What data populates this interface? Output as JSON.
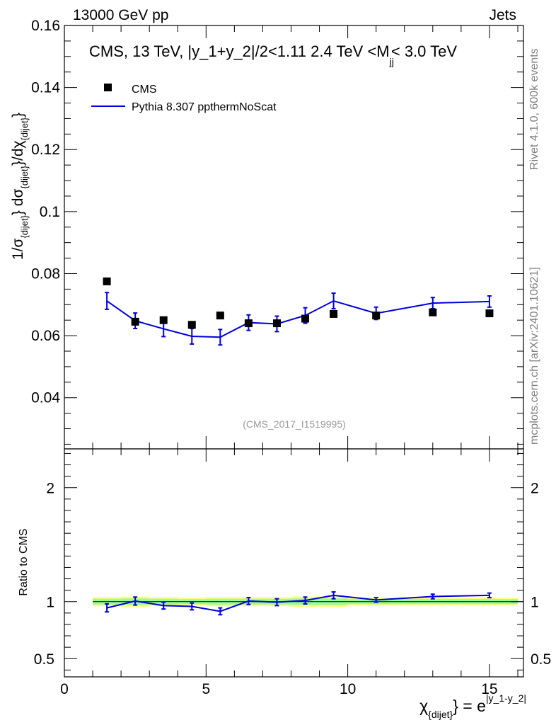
{
  "header": {
    "left": "13000 GeV pp",
    "right": "Jets"
  },
  "side_labels": {
    "rivet": "Rivet 4.1.0,  600k events",
    "mcplots": "mcplots.cern.ch [arXiv:2401.10621]"
  },
  "colors": {
    "data": "#000000",
    "mc": "#0000dd",
    "band_outer": "#ffff80",
    "band_inner": "#98fb98"
  },
  "chart_data": [
    {
      "type": "scatter",
      "title": "CMS, 13 TeV, |y_1+y_2|/2<1.11 2.4 TeV <M",
      "title_sub": "jj",
      "title_end": "< 3.0 TeV",
      "watermark": "(CMS_2017_I1519995)",
      "ylabel": {
        "parts": [
          "1/σ",
          "{dijet}",
          "} dσ",
          "{dijet}",
          "}/dχ",
          "{dijet}",
          "}"
        ]
      },
      "xlim": [
        0,
        16.2
      ],
      "ylim": [
        0.0235,
        0.16
      ],
      "yticks": [
        0.04,
        0.06,
        0.08,
        0.1,
        0.12,
        0.14,
        0.16
      ],
      "ytick_labels": [
        "0.04",
        "0.06",
        "0.08",
        "0.1",
        "0.12",
        "0.14",
        "0.16"
      ],
      "legend": [
        {
          "label": "CMS",
          "kind": "marker"
        },
        {
          "label": "Pythia 8.307 ppthermNoScat",
          "kind": "line"
        }
      ],
      "series": [
        {
          "name": "CMS",
          "x": [
            1.5,
            2.5,
            3.5,
            4.5,
            5.5,
            6.5,
            7.5,
            8.5,
            9.5,
            11.0,
            13.0,
            15.0
          ],
          "y": [
            0.0775,
            0.0645,
            0.065,
            0.0635,
            0.0665,
            0.064,
            0.064,
            0.0655,
            0.067,
            0.0665,
            0.0675,
            0.0672
          ]
        },
        {
          "name": "Pythia 8.307 ppthermNoScat",
          "x": [
            1.5,
            2.5,
            3.5,
            4.5,
            5.5,
            6.5,
            7.5,
            8.5,
            9.5,
            11.0,
            13.0,
            15.0
          ],
          "y": [
            0.0712,
            0.0648,
            0.0622,
            0.0598,
            0.0595,
            0.0642,
            0.0638,
            0.0665,
            0.0712,
            0.0672,
            0.0705,
            0.071
          ],
          "yerr": [
            0.0027,
            0.0025,
            0.0025,
            0.0025,
            0.0025,
            0.0025,
            0.0025,
            0.0025,
            0.0025,
            0.002,
            0.0018,
            0.0018
          ],
          "bins": [
            [
              1,
              2
            ],
            [
              2,
              3
            ],
            [
              3,
              4
            ],
            [
              4,
              5
            ],
            [
              5,
              6
            ],
            [
              6,
              7
            ],
            [
              7,
              8
            ],
            [
              8,
              9
            ],
            [
              9,
              10
            ],
            [
              10,
              12
            ],
            [
              12,
              14
            ],
            [
              14,
              16
            ]
          ]
        }
      ]
    },
    {
      "type": "line",
      "ylabel": "Ratio to CMS",
      "xlabel_main": "χ",
      "xlabel_sub": "{dijet}",
      "xlabel_eq": "} = e",
      "xlabel_sup": "|y_1-y_2|",
      "xlim": [
        0,
        16.2
      ],
      "ylim": [
        0.34,
        2.34
      ],
      "xticks": [
        0,
        5,
        10,
        15
      ],
      "xtick_labels": [
        "0",
        "5",
        "10",
        "15"
      ],
      "yticks": [
        0.5,
        1,
        2
      ],
      "ytick_labels": [
        "0.5",
        "1",
        "2"
      ],
      "band": {
        "x": [
          [
            1,
            2
          ],
          [
            2,
            3
          ],
          [
            3,
            4
          ],
          [
            4,
            5
          ],
          [
            5,
            6
          ],
          [
            6,
            7
          ],
          [
            7,
            8
          ],
          [
            8,
            9
          ],
          [
            9,
            10
          ],
          [
            10,
            12
          ],
          [
            12,
            14
          ],
          [
            14,
            16
          ]
        ],
        "outer": [
          0.04,
          0.045,
          0.04,
          0.035,
          0.04,
          0.04,
          0.04,
          0.045,
          0.045,
          0.035,
          0.035,
          0.035
        ],
        "inner": [
          0.025,
          0.028,
          0.025,
          0.022,
          0.025,
          0.025,
          0.025,
          0.028,
          0.028,
          0.022,
          0.022,
          0.022
        ]
      },
      "series": [
        {
          "name": "Pythia 8.307 ppthermNoScat",
          "x": [
            1.5,
            2.5,
            3.5,
            4.5,
            5.5,
            6.5,
            7.5,
            8.5,
            9.5,
            11.0,
            13.0,
            15.0
          ],
          "y": [
            0.945,
            1.005,
            0.965,
            0.958,
            0.915,
            1.005,
            0.995,
            1.01,
            1.055,
            1.015,
            1.045,
            1.055
          ],
          "yerr": [
            0.035,
            0.035,
            0.03,
            0.03,
            0.03,
            0.03,
            0.03,
            0.03,
            0.03,
            0.02,
            0.02,
            0.02
          ]
        }
      ]
    }
  ]
}
